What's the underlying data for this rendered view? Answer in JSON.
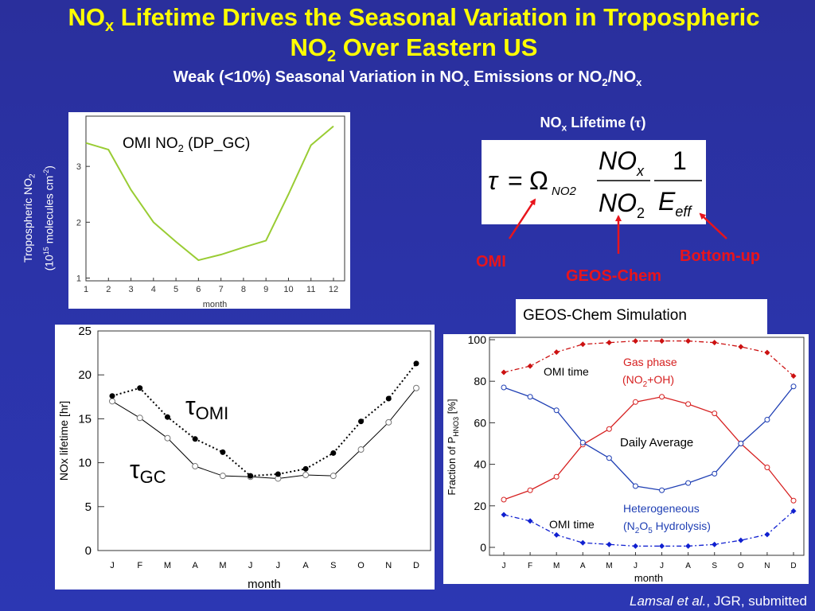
{
  "title": {
    "line1_pre": "NO",
    "line1_sub": "x",
    "line1_post": " Lifetime Drives the Seasonal Variation in Tropospheric",
    "line2_pre": "NO",
    "line2_sub": "2",
    "line2_post": " Over Eastern US"
  },
  "subtitle": {
    "pre": "Weak (<10%) Seasonal Variation in NO",
    "sub1": "x",
    "mid": " Emissions or NO",
    "sub2": "2",
    "post": "/NO",
    "sub3": "x"
  },
  "equation": {
    "heading_pre": "NO",
    "heading_sub": "x",
    "heading_post": " Lifetime (",
    "heading_tau": "τ",
    "heading_close": ")",
    "tau": "τ",
    "eq": "=",
    "omega": "Ω",
    "omega_sub": "NO2",
    "num1": "NO",
    "num1_sub": "x",
    "den1": "NO",
    "den1_sub": "2",
    "num2": "1",
    "den2": "E",
    "den2_sub": "eff"
  },
  "arrow_labels": {
    "omi": "OMI",
    "geos": "GEOS-Chem",
    "bottom_up": "Bottom-up"
  },
  "colors": {
    "title": "#ffff00",
    "arrow": "#e8141c",
    "omi_line": "#99cc33",
    "red_series": "#d62020",
    "blue_series": "#1f3fb4",
    "dark_red": "#cc1111",
    "blue_dash": "#1020d0"
  },
  "citation": {
    "authors": "Lamsal et al.",
    "rest": ", JGR, submitted"
  },
  "geos_box_label": "GEOS-Chem Simulation",
  "chart_data": [
    {
      "type": "line",
      "title_pre": "OMI NO",
      "title_sub": "2",
      "title_post": " (DP_GC)",
      "ylabel_line1_pre": "Tropospheric NO",
      "ylabel_line1_sub": "2",
      "ylabel_line2_pre": "(10",
      "ylabel_line2_sup1": "15",
      "ylabel_line2_mid": " molecules cm",
      "ylabel_line2_sup2": "-2",
      "ylabel_line2_post": ")",
      "xlabel": "month",
      "x": [
        1,
        2,
        3,
        4,
        5,
        6,
        7,
        8,
        9,
        10,
        11,
        12
      ],
      "xticks": [
        "1",
        "2",
        "3",
        "4",
        "5",
        "6",
        "7",
        "8",
        "9",
        "10",
        "11",
        "12"
      ],
      "yticks": [
        "1",
        "2",
        "3"
      ],
      "ylim": [
        0.95,
        3.9
      ],
      "series": [
        {
          "values": [
            3.42,
            3.3,
            2.58,
            2.0,
            1.65,
            1.32,
            1.42,
            1.55,
            1.67,
            2.5,
            3.38,
            3.72
          ]
        }
      ]
    },
    {
      "type": "line",
      "ylabel": "NOx lifetime [hr]",
      "xlabel": "month",
      "categories": [
        "J",
        "F",
        "M",
        "A",
        "M",
        "J",
        "J",
        "A",
        "S",
        "O",
        "N",
        "D"
      ],
      "yticks": [
        "0",
        "5",
        "10",
        "15",
        "20",
        "25"
      ],
      "ylim": [
        0,
        25
      ],
      "series": [
        {
          "name_tau": "τ",
          "name_sub": "OMI",
          "values": [
            17.6,
            18.5,
            15.2,
            12.7,
            11.2,
            8.5,
            8.7,
            9.3,
            11.1,
            14.7,
            17.3,
            21.3
          ]
        },
        {
          "name_tau": "τ",
          "name_sub": "GC",
          "values": [
            17.0,
            15.1,
            12.8,
            9.6,
            8.5,
            8.4,
            8.2,
            8.6,
            8.5,
            11.5,
            14.6,
            18.5
          ]
        }
      ]
    },
    {
      "type": "line",
      "ylabel_pre": "Fraction of P",
      "ylabel_sub": "HNO3",
      "ylabel_post": " [%]",
      "xlabel": "month",
      "categories": [
        "J",
        "F",
        "M",
        "A",
        "M",
        "J",
        "J",
        "A",
        "S",
        "O",
        "N",
        "D"
      ],
      "yticks": [
        "0",
        "20",
        "40",
        "60",
        "80",
        "100"
      ],
      "ylim": [
        0,
        100
      ],
      "annotations": {
        "gas_line1": "Gas phase",
        "gas_line2_pre": "(NO",
        "gas_line2_sub": "2",
        "gas_line2_post": "+OH)",
        "omi_time": "OMI time",
        "daily_avg": "Daily Average",
        "het_line1": "Heterogeneous",
        "het_line2_pre": "(N",
        "het_line2_sub1": "2",
        "het_line2_mid": "O",
        "het_line2_sub2": "5",
        "het_line2_post": " Hydrolysis)"
      },
      "series": [
        {
          "id": "gas_omi",
          "values": [
            84.3,
            87.3,
            94.0,
            97.8,
            98.6,
            99.4,
            99.4,
            99.4,
            98.6,
            96.6,
            93.8,
            82.5
          ]
        },
        {
          "id": "gas_avg",
          "values": [
            23.0,
            27.5,
            34.0,
            49.5,
            57.0,
            70.0,
            72.5,
            69.0,
            64.5,
            50.0,
            38.5,
            22.5
          ]
        },
        {
          "id": "het_avg",
          "values": [
            77.0,
            72.5,
            66.0,
            50.5,
            43.0,
            29.5,
            27.5,
            31.0,
            35.5,
            50.0,
            61.5,
            77.5
          ]
        },
        {
          "id": "het_omi",
          "values": [
            15.7,
            12.7,
            6.0,
            2.2,
            1.4,
            0.6,
            0.6,
            0.6,
            1.4,
            3.4,
            6.2,
            17.5
          ]
        }
      ]
    }
  ]
}
